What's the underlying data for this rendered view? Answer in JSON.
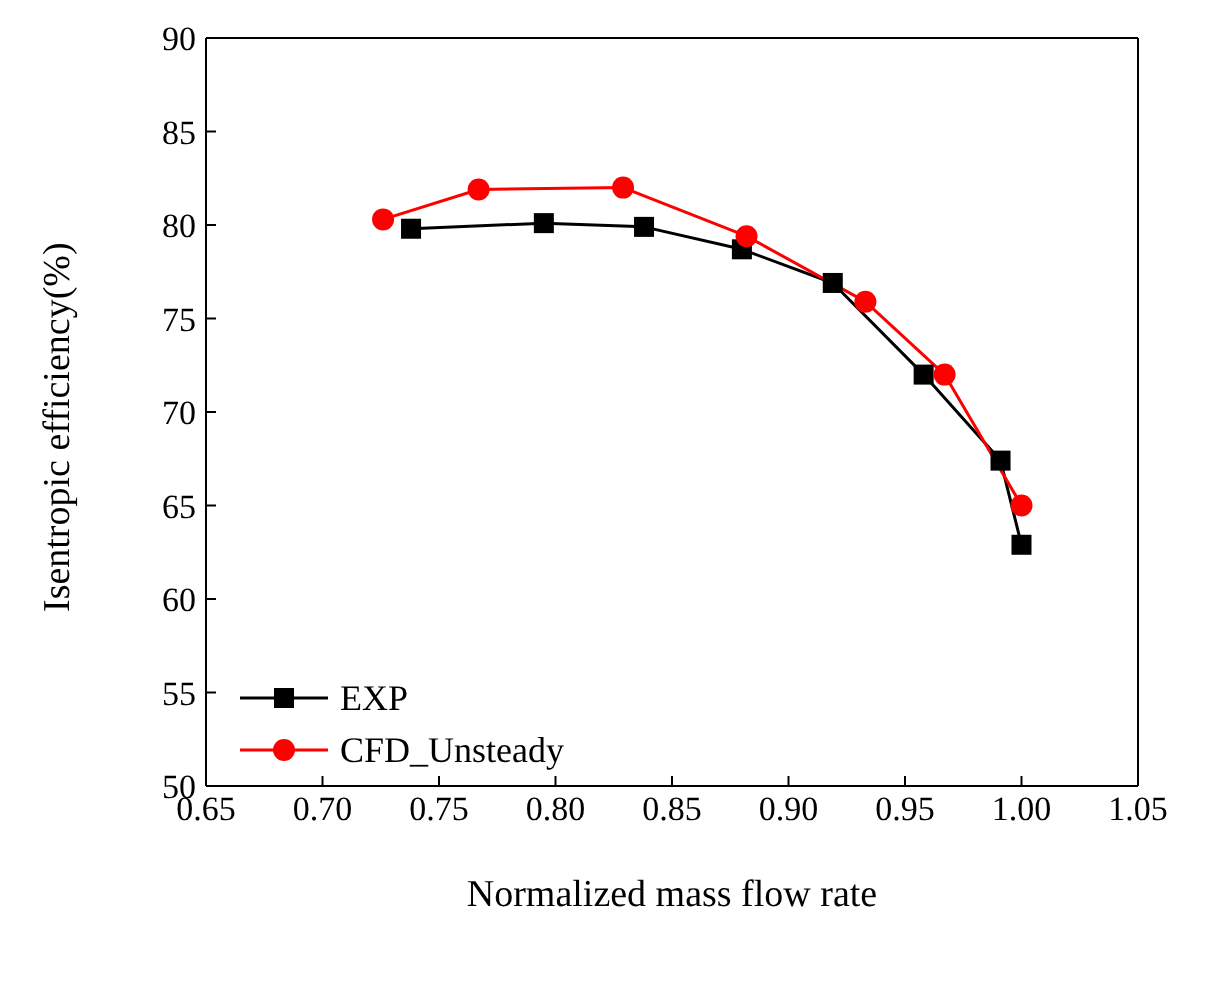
{
  "chart_data": {
    "type": "line",
    "xlabel": "Normalized mass flow rate",
    "ylabel": "Isentropic efficiency(%)",
    "xlim": [
      0.65,
      1.05
    ],
    "xticks": [
      {
        "value": 0.65,
        "label": "0.65"
      },
      {
        "value": 0.7,
        "label": "0.70"
      },
      {
        "value": 0.75,
        "label": "0.75"
      },
      {
        "value": 0.8,
        "label": "0.80"
      },
      {
        "value": 0.85,
        "label": "0.85"
      },
      {
        "value": 0.9,
        "label": "0.90"
      },
      {
        "value": 0.95,
        "label": "0.95"
      },
      {
        "value": 1.0,
        "label": "1.00"
      },
      {
        "value": 1.05,
        "label": "1.05"
      }
    ],
    "ylim": [
      50,
      90
    ],
    "yticks": [
      50,
      55,
      60,
      65,
      70,
      75,
      80,
      85,
      90
    ],
    "legend": "bottom left",
    "series": [
      {
        "name": "EXP",
        "color": "#000000",
        "marker": "square",
        "x": [
          0.738,
          0.795,
          0.838,
          0.88,
          0.919,
          0.958,
          0.991,
          1.0
        ],
        "values": [
          79.8,
          80.1,
          79.9,
          78.7,
          76.9,
          72.0,
          67.4,
          62.9
        ]
      },
      {
        "name": "CFD_Unsteady",
        "color": "#ff0000",
        "marker": "circle",
        "x": [
          0.726,
          0.767,
          0.829,
          0.882,
          0.933,
          0.967,
          1.0
        ],
        "values": [
          80.3,
          81.9,
          82.0,
          79.4,
          75.9,
          72.0,
          65.0
        ]
      }
    ]
  }
}
